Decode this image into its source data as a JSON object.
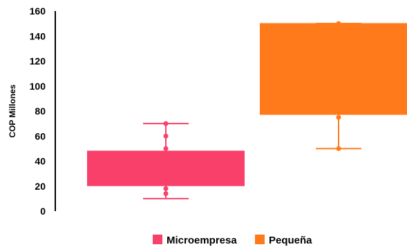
{
  "chart_data": {
    "type": "box",
    "ylabel": "COP Millones",
    "ylim": [
      0,
      160
    ],
    "yticks": [
      0,
      20,
      40,
      60,
      80,
      100,
      120,
      140,
      160
    ],
    "grid": false,
    "legend_position": "bottom",
    "series": [
      {
        "name": "Microempresa",
        "color": "#f9406b",
        "min": 10,
        "q1": 20,
        "median": 48,
        "q3": 48,
        "max": 70,
        "points": [
          70,
          60,
          50,
          18,
          14
        ]
      },
      {
        "name": "Pequeña",
        "color": "#ff7a1a",
        "min": 50,
        "q1": 77,
        "median": 150,
        "q3": 150,
        "max": 150,
        "points": [
          150,
          75,
          50
        ]
      }
    ]
  }
}
